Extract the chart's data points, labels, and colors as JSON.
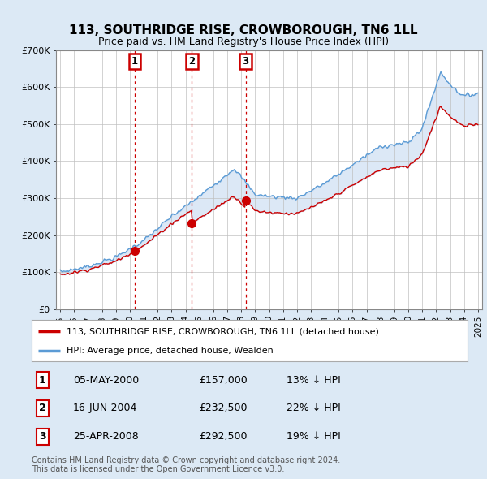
{
  "title": "113, SOUTHRIDGE RISE, CROWBOROUGH, TN6 1LL",
  "subtitle": "Price paid vs. HM Land Registry's House Price Index (HPI)",
  "ylim": [
    0,
    700000
  ],
  "yticks": [
    0,
    100000,
    200000,
    300000,
    400000,
    500000,
    600000,
    700000
  ],
  "ytick_labels": [
    "£0",
    "£100K",
    "£200K",
    "£300K",
    "£400K",
    "£500K",
    "£600K",
    "£700K"
  ],
  "xlim_start": 1994.7,
  "xlim_end": 2025.3,
  "sales": [
    {
      "date_label": "05-MAY-2000",
      "date_x": 2000.35,
      "price": 157000,
      "number": 1,
      "hpi_pct": "13% ↓ HPI"
    },
    {
      "date_label": "16-JUN-2004",
      "date_x": 2004.45,
      "price": 232500,
      "number": 2,
      "hpi_pct": "22% ↓ HPI"
    },
    {
      "date_label": "25-APR-2008",
      "date_x": 2008.32,
      "price": 292500,
      "number": 3,
      "hpi_pct": "19% ↓ HPI"
    }
  ],
  "legend_property_label": "113, SOUTHRIDGE RISE, CROWBOROUGH, TN6 1LL (detached house)",
  "legend_hpi_label": "HPI: Average price, detached house, Wealden",
  "footer_line1": "Contains HM Land Registry data © Crown copyright and database right 2024.",
  "footer_line2": "This data is licensed under the Open Government Licence v3.0.",
  "property_line_color": "#cc0000",
  "hpi_line_color": "#5b9bd5",
  "background_color": "#dce9f5",
  "plot_bg_color": "#ffffff",
  "fill_color": "#c5d9f0",
  "vline_color": "#cc0000",
  "sale_marker_color": "#cc0000",
  "number_box_color": "#cc0000",
  "grid_color": "#c0c0c0"
}
